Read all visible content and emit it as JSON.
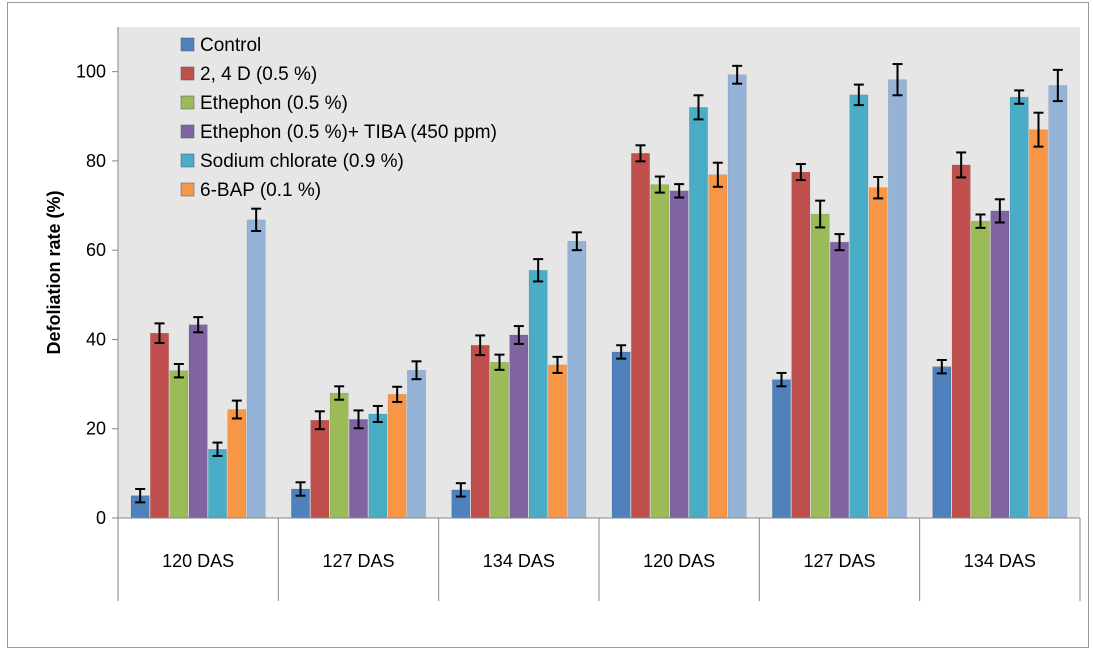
{
  "chart_data": {
    "type": "bar",
    "title": "",
    "xlabel": "",
    "ylabel": "Defoliation rate (%)",
    "ylim": [
      0,
      110
    ],
    "yticks": [
      0,
      20,
      40,
      60,
      80,
      100
    ],
    "categories": [
      "120 DAS",
      "127 DAS",
      "134 DAS",
      "120 DAS",
      "127 DAS",
      "134 DAS"
    ],
    "grid": false,
    "legend_position": "top-left",
    "series": [
      {
        "name": "Control",
        "color": "#4f81bd",
        "values": [
          5,
          6.5,
          6.3,
          37.2,
          31,
          33.9
        ],
        "errors": [
          1.5,
          1.5,
          1.5,
          1.5,
          1.5,
          1.5
        ]
      },
      {
        "name": "2, 4 D (0.5 %)",
        "color": "#c0504d",
        "values": [
          41.4,
          21.9,
          38.7,
          81.7,
          77.5,
          79.1
        ],
        "errors": [
          2.2,
          2,
          2.2,
          1.8,
          1.8,
          2.8
        ]
      },
      {
        "name": "Ethephon (0.5 %)",
        "color": "#9bbb59",
        "values": [
          33,
          28,
          34.9,
          74.7,
          68.1,
          66.5
        ],
        "errors": [
          1.5,
          1.5,
          1.7,
          1.8,
          3,
          1.5
        ]
      },
      {
        "name": "Ethephon (0.5 %)+ TIBA (450 ppm)",
        "color": "#8064a2",
        "values": [
          43.3,
          22.1,
          41,
          73.3,
          61.8,
          68.8
        ],
        "errors": [
          1.7,
          2,
          2,
          1.5,
          1.8,
          2.6
        ]
      },
      {
        "name": "Sodium chlorate (0.9 %)",
        "color": "#4bacc6",
        "values": [
          15.4,
          23.3,
          55.5,
          92,
          94.8,
          94.3
        ],
        "errors": [
          1.5,
          1.8,
          2.5,
          2.7,
          2.3,
          1.5
        ]
      },
      {
        "name": "6-BAP (0.1 %)",
        "color": "#f79646",
        "values": [
          24.3,
          27.7,
          34.3,
          76.9,
          74,
          87
        ],
        "errors": [
          2,
          1.7,
          1.8,
          2.7,
          2.4,
          3.8
        ]
      },
      {
        "color": "#95b3d7",
        "values": [
          66.8,
          33.1,
          62,
          99.3,
          98.2,
          96.9
        ],
        "errors": [
          2.5,
          2,
          2,
          2,
          3.5,
          3.5
        ]
      }
    ]
  }
}
